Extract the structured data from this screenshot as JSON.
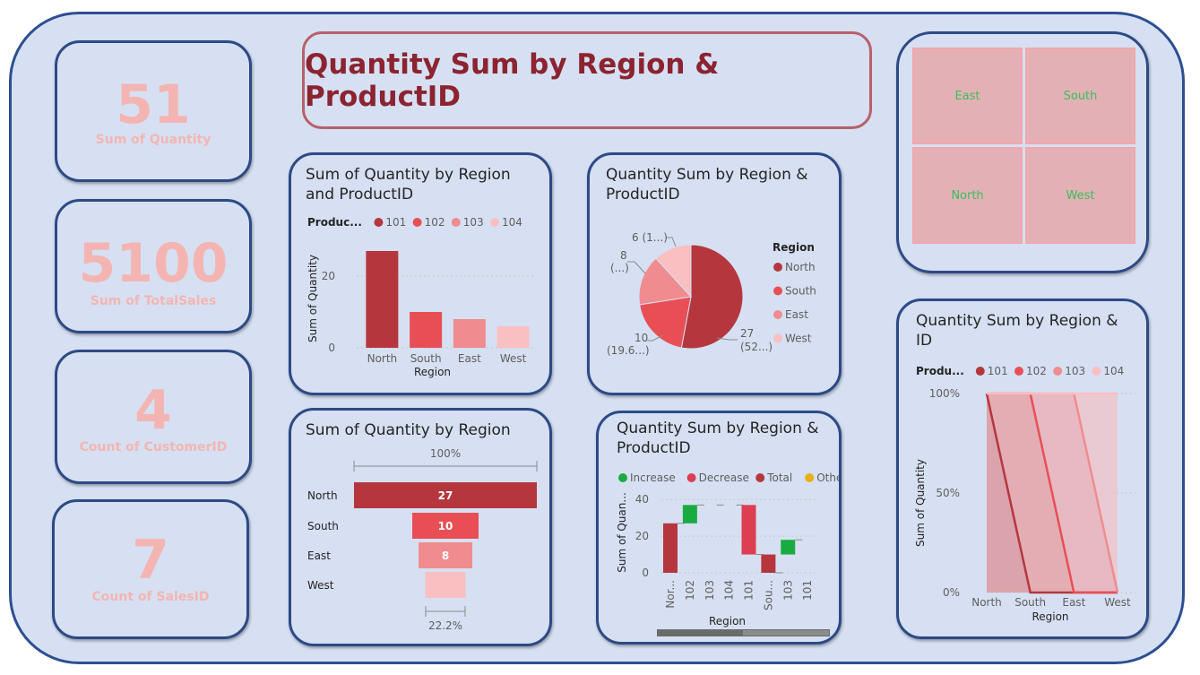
{
  "header": {
    "title": "Quantity Sum by Region & ProductID"
  },
  "kpis": [
    {
      "value": "51",
      "label": "Sum of Quantity"
    },
    {
      "value": "5100",
      "label": "Sum of TotalSales"
    },
    {
      "value": "4",
      "label": "Count of CustomerID"
    },
    {
      "value": "7",
      "label": "Count of SalesID"
    }
  ],
  "slicer": {
    "tiles": [
      "East",
      "South",
      "North",
      "West"
    ]
  },
  "colors": {
    "c101": "#b5373d",
    "c102": "#e84f55",
    "c103": "#f08c8f",
    "c104": "#f9bfc1",
    "increase": "#1aab40",
    "decrease": "#de3e52",
    "total": "#b5373d",
    "other": "#e6b012"
  },
  "chart_data": [
    {
      "id": "bar",
      "type": "bar",
      "title": "Sum of Quantity by Region and ProductID",
      "legend_title": "Produc...",
      "legend": [
        "101",
        "102",
        "103",
        "104"
      ],
      "categories": [
        "North",
        "South",
        "East",
        "West"
      ],
      "values": [
        27,
        10,
        8,
        6
      ],
      "xlabel": "Region",
      "ylabel": "Sum of Quantity",
      "yticks": [
        "20",
        "0"
      ],
      "ylim": [
        0,
        30
      ]
    },
    {
      "id": "pie",
      "type": "pie",
      "title": "Quantity Sum by Region & ProductID",
      "legend_title": "Region",
      "legend": [
        "North",
        "South",
        "East",
        "West"
      ],
      "values": [
        27,
        10,
        8,
        6
      ],
      "data_labels": [
        [
          "27",
          "(52...)"
        ],
        [
          "10",
          "(19.6...)"
        ],
        [
          "8",
          "(...)"
        ],
        [
          "6 (1...)"
        ]
      ]
    },
    {
      "id": "funnel",
      "type": "bar",
      "title": "Sum of Quantity by Region",
      "categories": [
        "North",
        "South",
        "East",
        "West"
      ],
      "values": [
        27,
        10,
        8,
        6
      ],
      "value_labels": [
        "27",
        "10",
        "8",
        ""
      ],
      "top_label": "100%",
      "bottom_label": "22.2%"
    },
    {
      "id": "waterfall",
      "type": "bar",
      "title": "Quantity Sum by Region & ProductID",
      "legend": [
        "Increase",
        "Decrease",
        "Total",
        "Other"
      ],
      "categories": [
        "Nor...",
        "102",
        "103",
        "104",
        "101",
        "Sou...",
        "103",
        "101"
      ],
      "steps": [
        {
          "start": 0,
          "end": 27,
          "kind": "total"
        },
        {
          "start": 27,
          "end": 37,
          "kind": "increase"
        },
        {
          "start": 37,
          "end": 37,
          "kind": "none"
        },
        {
          "start": 37,
          "end": 37,
          "kind": "none"
        },
        {
          "start": 37,
          "end": 10,
          "kind": "decrease"
        },
        {
          "start": 10,
          "end": 0,
          "kind": "total"
        },
        {
          "start": 10,
          "end": 18,
          "kind": "increase"
        },
        {
          "start": 18,
          "end": 18,
          "kind": "none"
        }
      ],
      "xlabel": "Region",
      "ylabel": "Sum of Quan...",
      "yticks": [
        "40",
        "20",
        "0"
      ],
      "ylim": [
        0,
        45
      ]
    },
    {
      "id": "area",
      "type": "area",
      "title": "Quantity Sum by Region & ID",
      "legend_title": "Produ...",
      "legend": [
        "101",
        "102",
        "103",
        "104"
      ],
      "categories": [
        "North",
        "South",
        "East",
        "West"
      ],
      "series": [
        {
          "name": "101",
          "values": [
            100,
            0,
            0,
            0
          ]
        },
        {
          "name": "102",
          "values": [
            100,
            100,
            0,
            0
          ]
        },
        {
          "name": "103",
          "values": [
            100,
            100,
            100,
            0
          ]
        },
        {
          "name": "104",
          "values": [
            100,
            100,
            100,
            100
          ]
        }
      ],
      "xlabel": "Region",
      "ylabel": "Sum of Quantity",
      "yticks": [
        "100%",
        "50%",
        "0%"
      ],
      "ylim": [
        0,
        100
      ]
    }
  ]
}
